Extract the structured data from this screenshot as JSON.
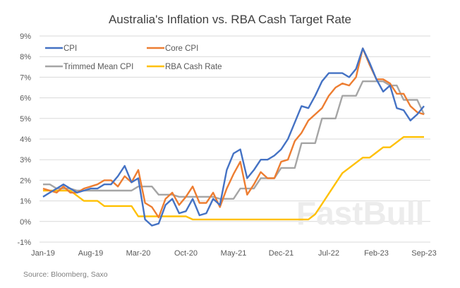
{
  "chart_data": {
    "type": "line",
    "title": "Australia's Inflation vs. RBA Cash Target Rate",
    "source": "Source: Bloomberg, Saxo",
    "watermark": "FastBull",
    "xlabel": "",
    "ylabel": "",
    "x_start": "Jan-19",
    "x_end": "Sep-23",
    "x_frequency": "monthly",
    "x_tick_labels": [
      "Jan-19",
      "Aug-19",
      "Mar-20",
      "Oct-20",
      "May-21",
      "Dec-21",
      "Jul-22",
      "Feb-23",
      "Sep-23"
    ],
    "y_tick_labels": [
      "-1%",
      "0%",
      "1%",
      "2%",
      "3%",
      "4%",
      "5%",
      "6%",
      "7%",
      "8%",
      "9%"
    ],
    "ylim": [
      -1,
      9
    ],
    "grid": "horizontal",
    "legend_position": "top-left",
    "series": [
      {
        "name": "CPI",
        "color": "#4472c4",
        "values": [
          1.2,
          1.4,
          1.6,
          1.8,
          1.6,
          1.4,
          1.5,
          1.6,
          1.6,
          1.8,
          1.8,
          2.2,
          2.7,
          1.9,
          2.1,
          0.1,
          -0.2,
          -0.1,
          0.8,
          1.1,
          0.4,
          0.5,
          1.1,
          0.3,
          0.4,
          1.1,
          0.8,
          2.5,
          3.3,
          3.5,
          2.1,
          2.5,
          3.0,
          3.0,
          3.2,
          3.5,
          4.0,
          4.8,
          5.6,
          5.5,
          6.1,
          6.8,
          7.2,
          7.2,
          7.2,
          7.0,
          7.4,
          8.4,
          7.7,
          6.9,
          6.3,
          6.6,
          5.5,
          5.4,
          4.9,
          5.2,
          5.6
        ]
      },
      {
        "name": "Core CPI",
        "color": "#ed7d31",
        "values": [
          1.6,
          1.5,
          1.4,
          1.7,
          1.4,
          1.4,
          1.6,
          1.7,
          1.8,
          2.0,
          2.0,
          1.7,
          2.2,
          1.9,
          2.5,
          0.9,
          0.7,
          0.2,
          1.1,
          1.4,
          0.8,
          1.2,
          1.7,
          0.9,
          0.9,
          1.4,
          0.7,
          1.6,
          2.3,
          2.9,
          1.3,
          1.8,
          2.4,
          2.1,
          2.1,
          2.9,
          3.0,
          3.9,
          4.3,
          4.9,
          5.2,
          5.5,
          6.1,
          6.5,
          6.7,
          6.6,
          7.0,
          8.4,
          7.6,
          6.9,
          6.9,
          6.7,
          6.2,
          6.2,
          5.6,
          5.3,
          5.2
        ]
      },
      {
        "name": "Trimmed Mean CPI",
        "color": "#a5a5a5",
        "values": [
          1.8,
          1.8,
          1.6,
          1.6,
          1.6,
          1.5,
          1.5,
          1.5,
          1.5,
          1.5,
          1.5,
          1.5,
          1.5,
          1.5,
          1.7,
          1.7,
          1.7,
          1.3,
          1.3,
          1.3,
          1.2,
          1.2,
          1.2,
          1.2,
          1.2,
          1.2,
          1.1,
          1.1,
          1.1,
          1.6,
          1.6,
          1.6,
          2.1,
          2.1,
          2.1,
          2.6,
          2.6,
          2.6,
          3.8,
          3.8,
          3.8,
          5.0,
          5.0,
          5.0,
          6.1,
          6.1,
          6.1,
          6.8,
          6.8,
          6.8,
          6.8,
          6.6,
          6.6,
          5.9,
          5.9,
          5.9,
          5.2
        ]
      },
      {
        "name": "RBA Cash Rate",
        "color": "#ffc000",
        "values": [
          1.5,
          1.5,
          1.5,
          1.5,
          1.5,
          1.25,
          1.0,
          1.0,
          1.0,
          0.75,
          0.75,
          0.75,
          0.75,
          0.75,
          0.25,
          0.25,
          0.25,
          0.25,
          0.25,
          0.25,
          0.25,
          0.25,
          0.1,
          0.1,
          0.1,
          0.1,
          0.1,
          0.1,
          0.1,
          0.1,
          0.1,
          0.1,
          0.1,
          0.1,
          0.1,
          0.1,
          0.1,
          0.1,
          0.1,
          0.1,
          0.35,
          0.85,
          1.35,
          1.85,
          2.35,
          2.6,
          2.85,
          3.1,
          3.1,
          3.35,
          3.6,
          3.6,
          3.85,
          4.1,
          4.1,
          4.1,
          4.1
        ]
      }
    ]
  }
}
